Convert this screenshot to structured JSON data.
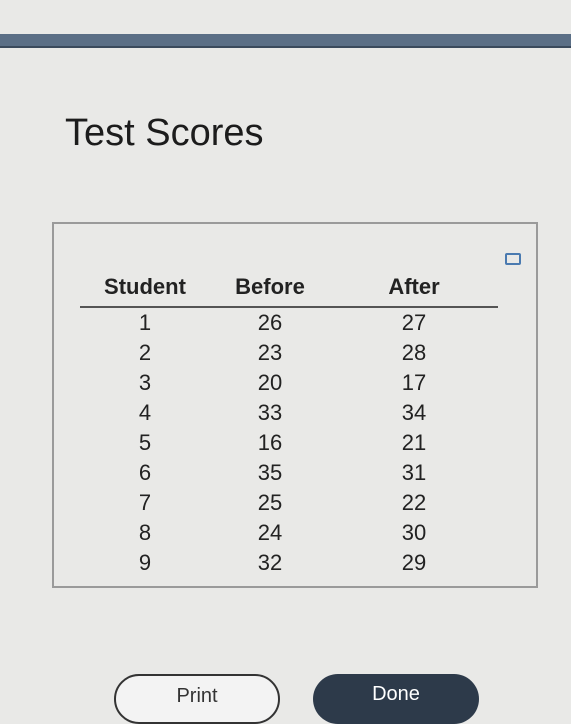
{
  "title": "Test Scores",
  "table": {
    "header": [
      "Student",
      "Before",
      "After"
    ],
    "rows": [
      [
        1,
        26,
        27
      ],
      [
        2,
        23,
        28
      ],
      [
        3,
        20,
        17
      ],
      [
        4,
        33,
        34
      ],
      [
        5,
        16,
        21
      ],
      [
        6,
        35,
        31
      ],
      [
        7,
        25,
        22
      ],
      [
        8,
        24,
        30
      ],
      [
        9,
        32,
        29
      ]
    ]
  },
  "buttons": [
    "Print",
    "Done"
  ]
}
